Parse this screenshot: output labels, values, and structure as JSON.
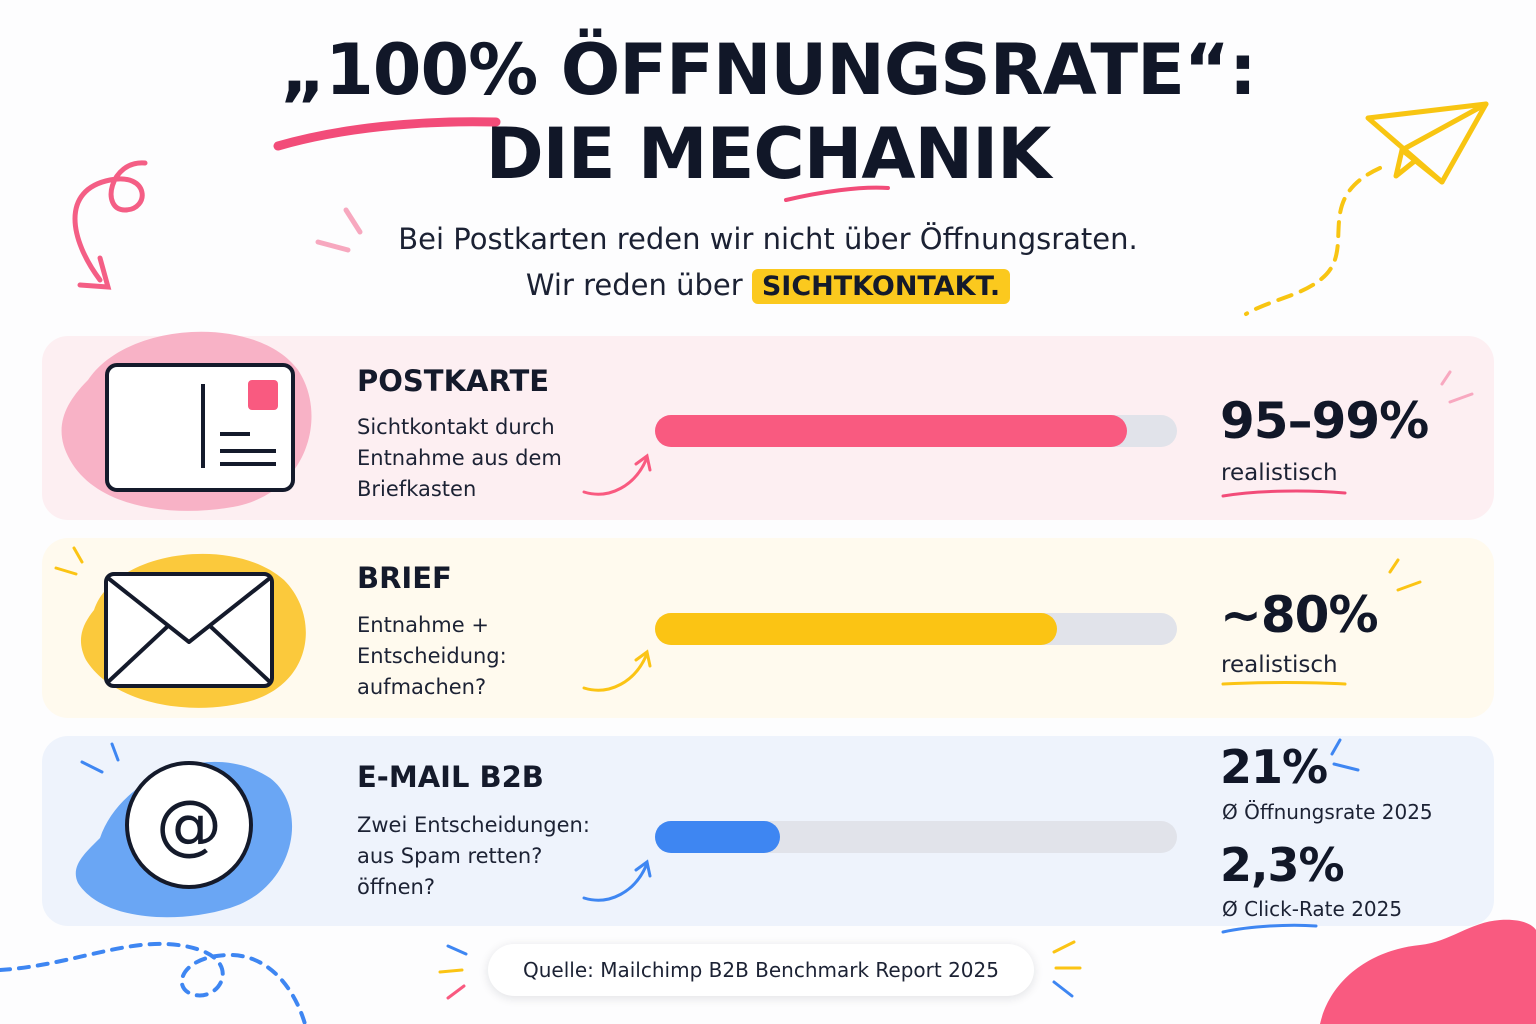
{
  "title": {
    "line1": "„100% ÖFFNUNGSRATE“:",
    "line2": "DIE MECHANIK"
  },
  "subtitle": {
    "line1": "Bei Postkarten reden wir nicht über Öffnungsraten.",
    "line2_prefix": "Wir reden über",
    "highlight": "SICHTKONTAKT."
  },
  "rows": [
    {
      "title": "POSTKARTE",
      "desc": [
        "Sichtkontakt durch",
        "Entnahme aus dem",
        "Briefkasten"
      ],
      "bar_fill_fraction": 0.905,
      "bar_color": "#f95a80",
      "value": "95–99%",
      "value_sub": "realistisch",
      "icon": "postcard-icon"
    },
    {
      "title": "BRIEF",
      "desc": [
        "Entnahme +",
        "Entscheidung:",
        "aufmachen?"
      ],
      "bar_fill_fraction": 0.77,
      "bar_color": "#fbc414",
      "value": "~80%",
      "value_sub": "realistisch",
      "icon": "envelope-icon"
    },
    {
      "title": "E-MAIL B2B",
      "desc": [
        "Zwei Entscheidungen:",
        "aus Spam retten?",
        "öffnen?"
      ],
      "bar_fill_fraction": 0.24,
      "bar_color": "#3e86f2",
      "value": "21%",
      "value_sub": "Ø Öffnungsrate 2025",
      "value2": "2,3%",
      "value2_sub": "Ø Click-Rate 2025",
      "icon": "at-sign-icon"
    }
  ],
  "source": "Quelle: Mailchimp B2B Benchmark Report 2025",
  "colors": {
    "pink": "#f95a80",
    "yellow": "#fbc414",
    "blue": "#3e86f2",
    "dark": "#111728"
  },
  "decorations": [
    "curly-arrow-icon",
    "paper-plane-icon",
    "sparkle-icon",
    "dashed-loop-icon"
  ]
}
